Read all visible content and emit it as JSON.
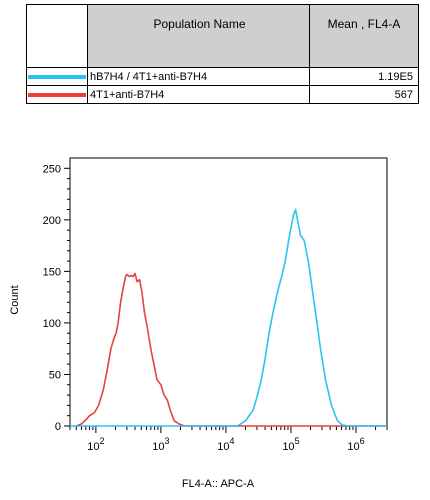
{
  "table": {
    "headers": [
      "Population Name",
      "Mean , FL4-A"
    ],
    "rows": [
      {
        "name": "hB7H4 / 4T1+anti-B7H4",
        "mean": "1.19E5",
        "color": "#29c4f0"
      },
      {
        "name": "4T1+anti-B7H4",
        "mean": "567",
        "color": "#e8413c"
      }
    ]
  },
  "chart_data": {
    "type": "line",
    "title": "",
    "xlabel": "FL4-A:: APC-A",
    "ylabel": "Count",
    "x_scale": "log",
    "xlim": [
      40,
      3000000
    ],
    "ylim": [
      0,
      260
    ],
    "y_ticks": [
      0,
      50,
      100,
      150,
      200,
      250
    ],
    "x_ticks": [
      {
        "value": 100,
        "base": "10",
        "exp": "2"
      },
      {
        "value": 1000,
        "base": "10",
        "exp": "3"
      },
      {
        "value": 10000,
        "base": "10",
        "exp": "4"
      },
      {
        "value": 100000,
        "base": "10",
        "exp": "5"
      },
      {
        "value": 1000000,
        "base": "10",
        "exp": "6"
      }
    ],
    "grid": false,
    "series": [
      {
        "name": "4T1+anti-B7H4",
        "color": "#e8413c",
        "points": [
          [
            50,
            0
          ],
          [
            60,
            2
          ],
          [
            70,
            6
          ],
          [
            80,
            10
          ],
          [
            95,
            13
          ],
          [
            110,
            20
          ],
          [
            130,
            35
          ],
          [
            150,
            55
          ],
          [
            170,
            75
          ],
          [
            190,
            85
          ],
          [
            205,
            90
          ],
          [
            220,
            100
          ],
          [
            240,
            120
          ],
          [
            265,
            135
          ],
          [
            285,
            145
          ],
          [
            300,
            147
          ],
          [
            325,
            145
          ],
          [
            350,
            146
          ],
          [
            375,
            145
          ],
          [
            400,
            148
          ],
          [
            430,
            140
          ],
          [
            470,
            142
          ],
          [
            510,
            130
          ],
          [
            560,
            110
          ],
          [
            620,
            95
          ],
          [
            700,
            75
          ],
          [
            780,
            60
          ],
          [
            870,
            45
          ],
          [
            1000,
            40
          ],
          [
            1120,
            30
          ],
          [
            1260,
            25
          ],
          [
            1400,
            15
          ],
          [
            1600,
            5
          ],
          [
            1900,
            2
          ],
          [
            2300,
            0
          ],
          [
            3000000,
            0
          ]
        ]
      },
      {
        "name": "hB7H4 / 4T1+anti-B7H4",
        "color": "#29c4f0",
        "points": [
          [
            40,
            0
          ],
          [
            15000,
            0
          ],
          [
            20000,
            5
          ],
          [
            26000,
            15
          ],
          [
            30000,
            28
          ],
          [
            35000,
            45
          ],
          [
            40000,
            65
          ],
          [
            46000,
            90
          ],
          [
            53000,
            110
          ],
          [
            62000,
            130
          ],
          [
            72000,
            145
          ],
          [
            82000,
            160
          ],
          [
            92000,
            180
          ],
          [
            102000,
            195
          ],
          [
            110000,
            205
          ],
          [
            118000,
            210
          ],
          [
            126000,
            200
          ],
          [
            140000,
            185
          ],
          [
            160000,
            180
          ],
          [
            185000,
            160
          ],
          [
            210000,
            135
          ],
          [
            245000,
            105
          ],
          [
            285000,
            75
          ],
          [
            340000,
            45
          ],
          [
            420000,
            20
          ],
          [
            520000,
            5
          ],
          [
            620000,
            1
          ],
          [
            750000,
            0
          ],
          [
            3000000,
            0
          ]
        ]
      }
    ]
  }
}
